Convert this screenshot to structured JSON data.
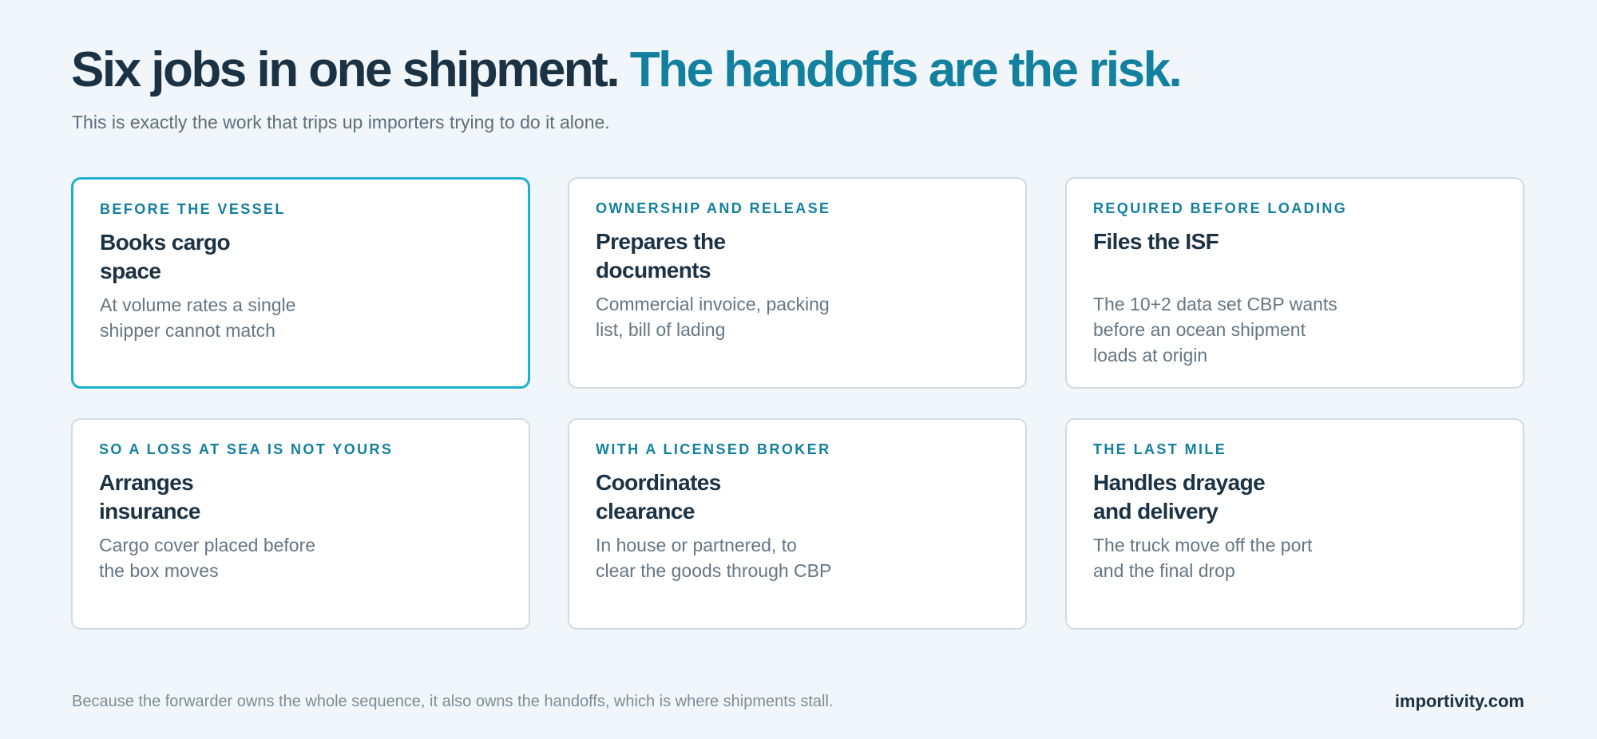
{
  "header": {
    "title_lead": "Six jobs in one shipment.",
    "title_accent": "The handoffs are the risk.",
    "subtitle": "This is exactly the work that trips up importers trying to do it alone."
  },
  "cards": [
    {
      "label": "BEFORE THE VESSEL",
      "title_lines": [
        "Books cargo",
        "space"
      ],
      "body_lines": [
        "At volume rates a single",
        "shipper cannot match"
      ]
    },
    {
      "label": "OWNERSHIP AND RELEASE",
      "title_lines": [
        "Prepares the",
        "documents"
      ],
      "body_lines": [
        "Commercial invoice, packing",
        "list, bill of lading"
      ]
    },
    {
      "label": "REQUIRED BEFORE LOADING",
      "title_lines": [
        "Files the ISF"
      ],
      "body_lines": [
        "The 10+2 data set CBP wants",
        "before an ocean shipment",
        "loads at origin"
      ]
    },
    {
      "label": "SO A LOSS AT SEA IS NOT YOURS",
      "title_lines": [
        "Arranges",
        "insurance"
      ],
      "body_lines": [
        "Cargo cover placed before",
        "the box moves"
      ]
    },
    {
      "label": "WITH A LICENSED BROKER",
      "title_lines": [
        "Coordinates",
        "clearance"
      ],
      "body_lines": [
        "In house or partnered, to",
        "clear the goods through CBP"
      ]
    },
    {
      "label": "THE LAST MILE",
      "title_lines": [
        "Handles drayage",
        "and delivery"
      ],
      "body_lines": [
        "The truck move off the port",
        "and the final drop"
      ]
    }
  ],
  "footer": {
    "note": "Because the forwarder owns the whole sequence, it also owns the handoffs, which is where shipments stall.",
    "brand": "importivity.com"
  }
}
